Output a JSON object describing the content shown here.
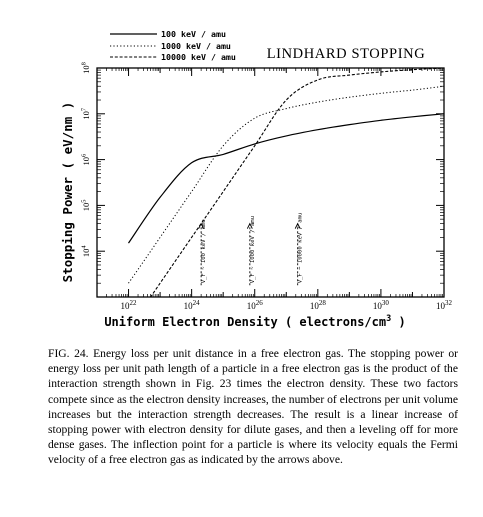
{
  "chart_data": {
    "type": "line",
    "title": "LINDHARD  STOPPING",
    "xlabel": "Uniform  Electron  Density  ( electrons/cm",
    "xlabel_sup": "3",
    "xlabel_end": " )",
    "ylabel": "Stopping  Power  ( eV/nm )",
    "x_scale": "log",
    "y_scale": "log",
    "xlim": [
      1e+21,
      1e+32
    ],
    "ylim": [
      1000.0,
      100000000.0
    ],
    "grid": false,
    "legend_position": "top-left",
    "x_ticks": [
      {
        "value": 1e+22,
        "base": "10",
        "exp": "22"
      },
      {
        "value": 1e+24,
        "base": "10",
        "exp": "24"
      },
      {
        "value": 1e+26,
        "base": "10",
        "exp": "26"
      },
      {
        "value": 1e+28,
        "base": "10",
        "exp": "28"
      },
      {
        "value": 1e+30,
        "base": "10",
        "exp": "30"
      },
      {
        "value": 1e+32,
        "base": "10",
        "exp": "32"
      }
    ],
    "y_ticks": [
      {
        "value": 10000.0,
        "base": "10",
        "exp": "4"
      },
      {
        "value": 100000.0,
        "base": "10",
        "exp": "5"
      },
      {
        "value": 1000000.0,
        "base": "10",
        "exp": "6"
      },
      {
        "value": 10000000.0,
        "base": "10",
        "exp": "7"
      },
      {
        "value": 100000000.0,
        "base": "10",
        "exp": "8"
      }
    ],
    "series": [
      {
        "name": "100 keV / amu",
        "style": "solid",
        "points": [
          [
            1e+22,
            15000
          ],
          [
            1e+23,
            150000.0
          ],
          [
            1e+24,
            850000.0
          ],
          [
            1e+25,
            1300000.0
          ],
          [
            1e+26,
            2200000.0
          ],
          [
            1e+27,
            3300000.0
          ],
          [
            1e+28,
            4500000.0
          ],
          [
            1e+29,
            5800000.0
          ],
          [
            1e+30,
            7200000.0
          ],
          [
            1e+31,
            8600000.0
          ],
          [
            1e+32,
            10000000.0
          ]
        ]
      },
      {
        "name": "1000 keV / amu",
        "style": "dotted",
        "points": [
          [
            1e+22,
            2000
          ],
          [
            1e+23,
            20000.0
          ],
          [
            1e+24,
            200000.0
          ],
          [
            1e+25,
            2000000.0
          ],
          [
            1e+26,
            8000000.0
          ],
          [
            1e+27,
            13000000.0
          ],
          [
            1e+28,
            18000000.0
          ],
          [
            1e+29,
            23000000.0
          ],
          [
            1e+30,
            28000000.0
          ],
          [
            1e+31,
            33000000.0
          ],
          [
            1e+32,
            40000000.0
          ]
        ]
      },
      {
        "name": "10000 keV / amu",
        "style": "dashed",
        "points": [
          [
            1e+22,
            200
          ],
          [
            1e+23,
            2000
          ],
          [
            1e+24,
            20000.0
          ],
          [
            1e+25,
            200000.0
          ],
          [
            1e+26,
            2000000.0
          ],
          [
            1e+27,
            20000000.0
          ],
          [
            1e+28,
            55000000.0
          ],
          [
            1e+29,
            70000000.0
          ],
          [
            1e+30,
            82000000.0
          ],
          [
            1e+31,
            92000000.0
          ],
          [
            1e+32,
            100000000.0
          ]
        ]
      }
    ],
    "annotations": [
      {
        "x": 2e+24,
        "text": "V_F ~ 100 keV / amu",
        "y_from": 1800,
        "y_to": 40000
      },
      {
        "x": 7e+25,
        "text": "V_F ~ 1000 keV / amu",
        "y_from": 1800,
        "y_to": 40000
      },
      {
        "x": 2.3e+27,
        "text": "V_F ~ 10000 keV / amu",
        "y_from": 1800,
        "y_to": 40000
      }
    ]
  },
  "caption": "FIG. 24. Energy loss per unit distance in a free electron gas. The stopping power or energy loss per unit path length of a particle in a free electron gas is the product of the interaction strength shown in Fig. 23 times the electron density. These two factors compete since as the electron density increases, the number of electrons per unit volume increases but the interaction strength decreases. The result is a linear increase of stopping power with electron density for dilute gases, and then a leveling off for more dense gases. The inflection point for a particle is where its velocity equals the Fermi velocity of a free electron gas as indicated by the arrows above."
}
